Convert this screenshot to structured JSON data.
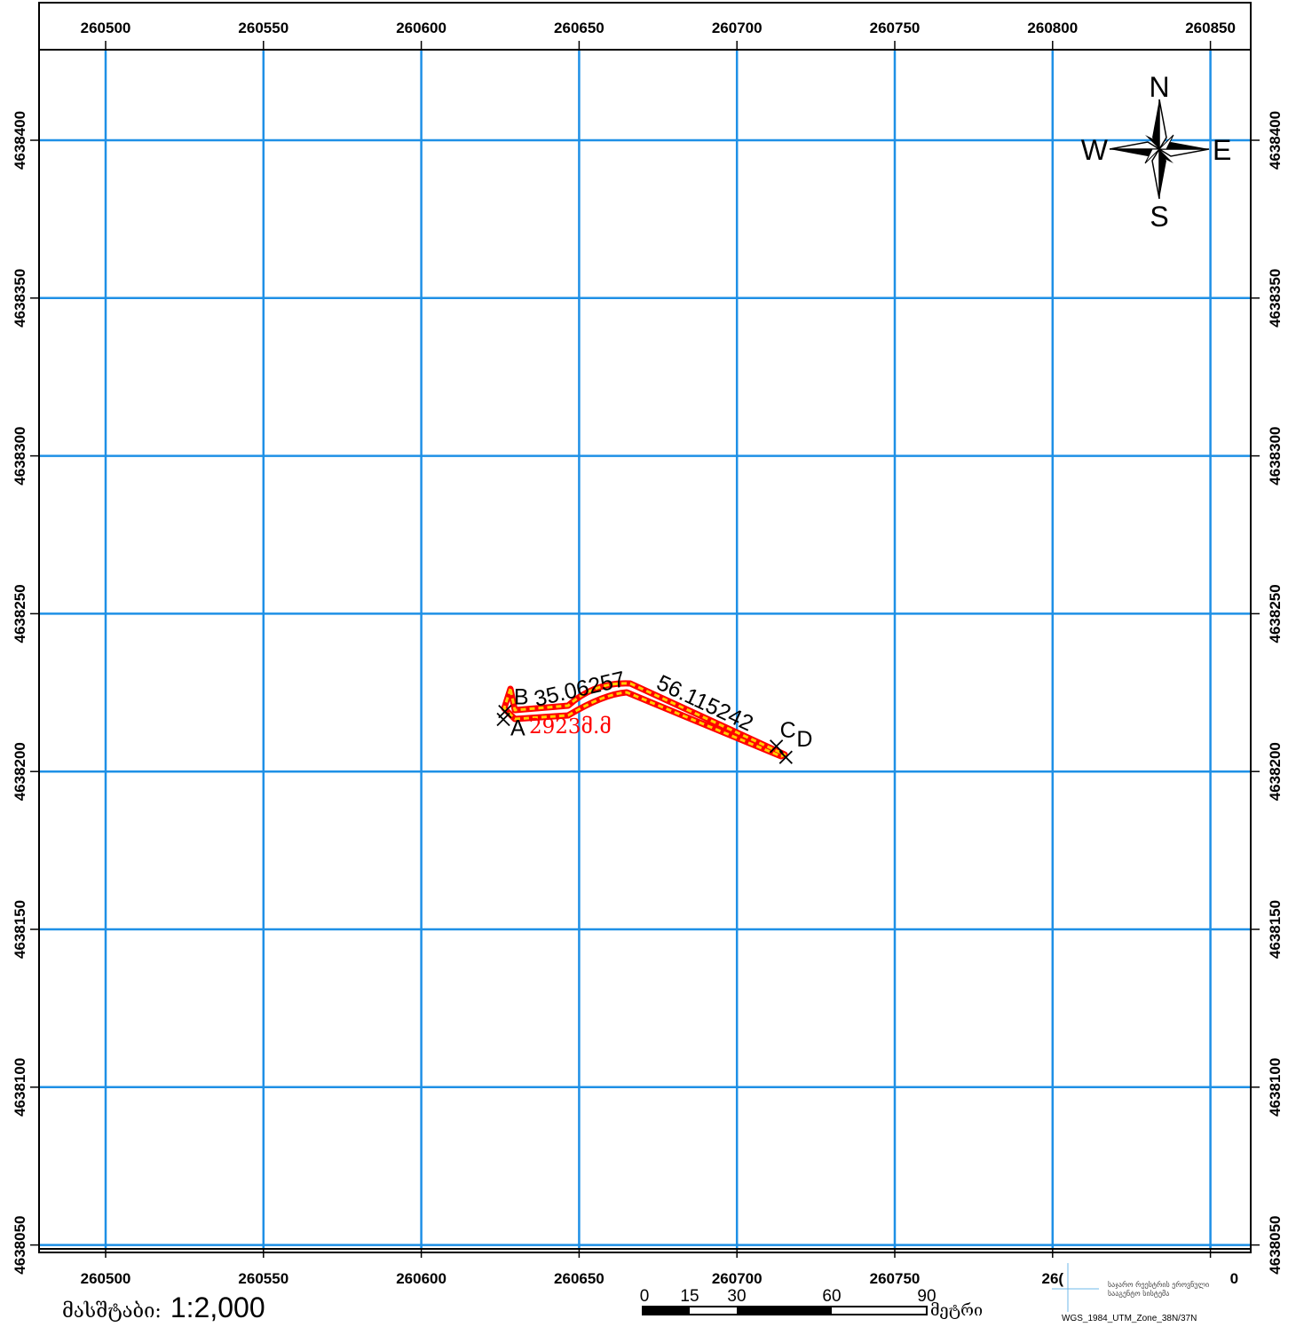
{
  "map": {
    "x_ticks": [
      "260500",
      "260550",
      "260600",
      "260650",
      "260700",
      "260750",
      "260800",
      "260850"
    ],
    "x_ticks_bottom": [
      "260500",
      "260550",
      "260600",
      "260650",
      "260700",
      "260750",
      "26(",
      "0"
    ],
    "y_ticks": [
      "4638400",
      "4638350",
      "4638300",
      "4638250",
      "4638200",
      "4638150",
      "4638100",
      "4638050"
    ],
    "colors": {
      "grid": "#1e90e6",
      "outline": "#ff0000",
      "fill": "#ffcc00",
      "frame": "#000000"
    }
  },
  "feature": {
    "points": [
      {
        "label": "A",
        "x": 260626.0,
        "y": 4638216.5
      },
      {
        "label": "B",
        "x": 260626.5,
        "y": 4638219.0
      },
      {
        "label": "C",
        "x": 260712.5,
        "y": 4638208.0
      },
      {
        "label": "D",
        "x": 260715.5,
        "y": 4638204.5
      }
    ],
    "segment_labels": [
      "35.06257",
      "56.115242"
    ],
    "area_label": "2923მ.მ"
  },
  "compass": {
    "n": "N",
    "s": "S",
    "e": "E",
    "w": "W"
  },
  "scale": {
    "prefix": "მასშტაბი:",
    "ratio": "1:2,000"
  },
  "scale_bar": {
    "labels": [
      "0",
      "15",
      "30",
      "60",
      "90"
    ],
    "unit": "მეტრი"
  },
  "logo": {
    "line1": "საჯარო რეესტრის ეროვნული",
    "line2": "სააგენტო სისტემა"
  },
  "crs": "WGS_1984_UTM_Zone_38N/37N"
}
